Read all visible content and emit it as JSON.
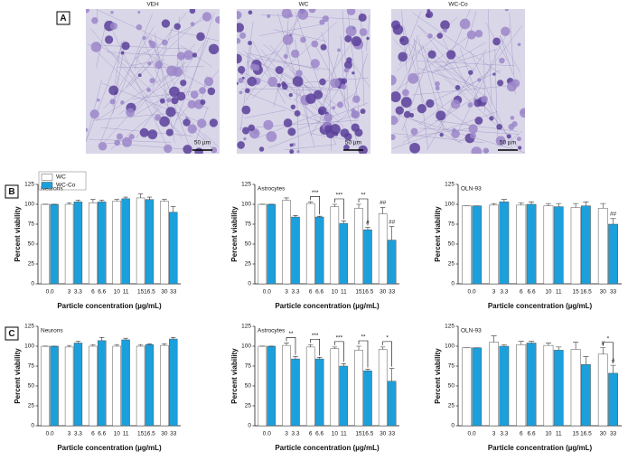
{
  "panels": {
    "a": {
      "label": "A",
      "images": [
        {
          "title": "VEH",
          "scale": "50 µm"
        },
        {
          "title": "WC",
          "scale": "50 µm"
        },
        {
          "title": "WC-Co",
          "scale": "50 µm"
        }
      ]
    },
    "b": {
      "label": "B"
    },
    "c": {
      "label": "C"
    }
  },
  "chart_data": [
    {
      "type": "bar",
      "title": "Neurons",
      "ylabel": "Percent viability",
      "xlabel": "Particle concentration (µg/mL)",
      "ylim": [
        0,
        125
      ],
      "yticks": [
        0,
        25,
        50,
        75,
        100,
        125
      ],
      "legend": true,
      "series": [
        {
          "name": "WC",
          "color": "#ffffff",
          "labels": [
            "0.0",
            "3",
            "6",
            "10",
            "15",
            "30"
          ],
          "values": [
            100,
            100,
            102,
            104,
            108,
            104
          ],
          "errors": [
            0,
            2,
            4,
            2,
            5,
            2
          ]
        },
        {
          "name": "WC-Co",
          "color": "#1ba0dc",
          "labels": [
            null,
            "3.3",
            "6.6",
            "11",
            "16.5",
            "33"
          ],
          "values": [
            100,
            103,
            103,
            107,
            106,
            90
          ],
          "errors": [
            0,
            2,
            2,
            2,
            3,
            7
          ]
        }
      ],
      "annotations": []
    },
    {
      "type": "bar",
      "title": "Astrocytes",
      "ylabel": "Percent viability",
      "xlabel": "Particle concentration (µg/mL)",
      "ylim": [
        0,
        125
      ],
      "yticks": [
        0,
        25,
        50,
        75,
        100,
        125
      ],
      "series": [
        {
          "name": "WC",
          "color": "#ffffff",
          "labels": [
            "0.0",
            "3",
            "6",
            "10",
            "15",
            "30"
          ],
          "values": [
            100,
            105,
            101,
            97,
            95,
            88
          ],
          "errors": [
            0,
            3,
            2,
            3,
            5,
            8
          ]
        },
        {
          "name": "WC-Co",
          "color": "#1ba0dc",
          "labels": [
            null,
            "3.3",
            "6.6",
            "11",
            "16.5",
            "33"
          ],
          "values": [
            100,
            84,
            84,
            76,
            68,
            55
          ],
          "errors": [
            0,
            2,
            1,
            3,
            3,
            17
          ]
        }
      ],
      "annotations": [
        {
          "text": "***",
          "group": 2
        },
        {
          "text": "***",
          "group": 3
        },
        {
          "text": "**",
          "group": 4
        },
        {
          "text": "#",
          "group": 4,
          "series": 1
        },
        {
          "text": "##",
          "group": 5,
          "series": 0
        },
        {
          "text": "##",
          "group": 5,
          "series": 1
        }
      ]
    },
    {
      "type": "bar",
      "title": "OLN-93",
      "ylabel": "Percent viability",
      "xlabel": "Particle concentration (µg/mL)",
      "ylim": [
        0,
        125
      ],
      "yticks": [
        0,
        25,
        50,
        75,
        100,
        125
      ],
      "series": [
        {
          "name": "WC",
          "color": "#ffffff",
          "labels": [
            "0.0",
            "3",
            "6",
            "10",
            "15",
            "30"
          ],
          "values": [
            98,
            99,
            99,
            98,
            96,
            95
          ],
          "errors": [
            0,
            2,
            3,
            3,
            5,
            6
          ]
        },
        {
          "name": "WC-Co",
          "color": "#1ba0dc",
          "labels": [
            null,
            "3.3",
            "6.6",
            "11",
            "16.5",
            "33"
          ],
          "values": [
            98,
            103,
            100,
            97,
            98,
            75
          ],
          "errors": [
            0,
            3,
            3,
            4,
            5,
            7
          ]
        }
      ],
      "annotations": [
        {
          "text": "##",
          "group": 5,
          "series": 1
        }
      ]
    },
    {
      "type": "bar",
      "title": "Neurons",
      "ylabel": "Percent viability",
      "xlabel": "Particle concentration (µg/mL)",
      "ylim": [
        0,
        125
      ],
      "yticks": [
        0,
        25,
        50,
        75,
        100,
        125
      ],
      "series": [
        {
          "name": "WC",
          "color": "#ffffff",
          "labels": [
            "0.0",
            "3",
            "6",
            "10",
            "15",
            "30"
          ],
          "values": [
            100,
            99,
            100,
            100,
            100,
            101
          ],
          "errors": [
            0,
            2,
            2,
            2,
            2,
            2
          ]
        },
        {
          "name": "WC-Co",
          "color": "#1ba0dc",
          "labels": [
            null,
            "3.3",
            "6.6",
            "11",
            "16.5",
            "33"
          ],
          "values": [
            100,
            104,
            107,
            108,
            102,
            109
          ],
          "errors": [
            0,
            2,
            4,
            2,
            1,
            2
          ]
        }
      ],
      "annotations": []
    },
    {
      "type": "bar",
      "title": "Astrocytes",
      "ylabel": "Percent viability",
      "xlabel": "Particle concentration (µg/mL)",
      "ylim": [
        0,
        125
      ],
      "yticks": [
        0,
        25,
        50,
        75,
        100,
        125
      ],
      "series": [
        {
          "name": "WC",
          "color": "#ffffff",
          "labels": [
            "0.0",
            "3",
            "6",
            "10",
            "15",
            "30"
          ],
          "values": [
            100,
            101,
            99,
            97,
            95,
            96
          ],
          "errors": [
            0,
            3,
            3,
            2,
            5,
            3
          ]
        },
        {
          "name": "WC-Co",
          "color": "#1ba0dc",
          "labels": [
            null,
            "3.3",
            "6.6",
            "11",
            "16.5",
            "33"
          ],
          "values": [
            100,
            84,
            84,
            75,
            69,
            56
          ],
          "errors": [
            0,
            3,
            2,
            3,
            2,
            16
          ]
        }
      ],
      "annotations": [
        {
          "text": "**",
          "group": 1
        },
        {
          "text": "***",
          "group": 2
        },
        {
          "text": "***",
          "group": 3
        },
        {
          "text": "**",
          "group": 4
        },
        {
          "text": "*",
          "group": 5
        }
      ]
    },
    {
      "type": "bar",
      "title": "OLN-93",
      "ylabel": "Percent viability",
      "xlabel": "Particle concentration (µg/mL)",
      "ylim": [
        0,
        125
      ],
      "yticks": [
        0,
        25,
        50,
        75,
        100,
        125
      ],
      "series": [
        {
          "name": "WC",
          "color": "#ffffff",
          "labels": [
            "0.0",
            "3",
            "6",
            "10",
            "15",
            "30"
          ],
          "values": [
            98,
            105,
            102,
            101,
            96,
            90
          ],
          "errors": [
            0,
            8,
            4,
            3,
            9,
            8
          ]
        },
        {
          "name": "WC-Co",
          "color": "#1ba0dc",
          "labels": [
            null,
            "3.3",
            "6.6",
            "11",
            "16.5",
            "33"
          ],
          "values": [
            98,
            100,
            104,
            95,
            77,
            66
          ],
          "errors": [
            0,
            2,
            2,
            4,
            10,
            10
          ]
        }
      ],
      "annotations": [
        {
          "text": "*",
          "group": 5
        },
        {
          "text": "#",
          "group": 5,
          "series": 0
        },
        {
          "text": "#",
          "group": 5,
          "series": 1
        }
      ]
    }
  ]
}
